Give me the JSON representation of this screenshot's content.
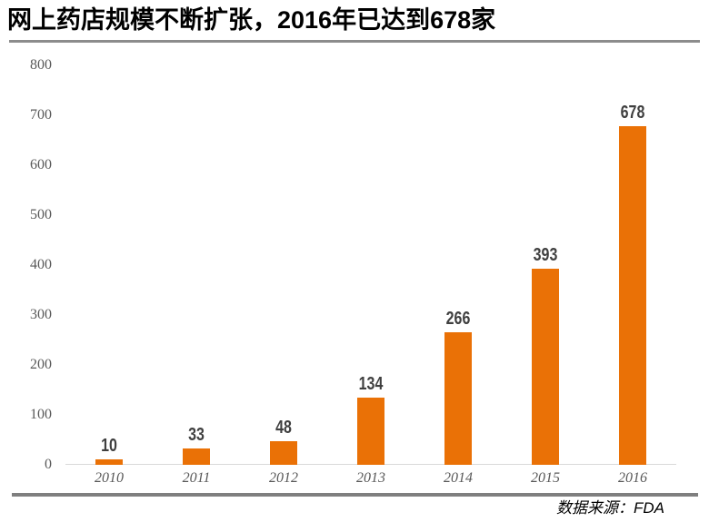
{
  "page": {
    "title": "网上药店规模不断扩张，2016年已达到678家",
    "source": "数据来源：FDA"
  },
  "colors": {
    "bar": "#ea7106",
    "value_label": "#3f3f3f",
    "axis_tick_label": "#595959",
    "axis_line": "#d9d9d9",
    "title_rule": "#8c8c8c",
    "footer_rule": "#7f7f7f",
    "title_text": "#000000"
  },
  "chart_data": {
    "type": "bar",
    "title": "网上药店规模不断扩张，2016年已达到678家",
    "categories": [
      "2010",
      "2011",
      "2012",
      "2013",
      "2014",
      "2015",
      "2016"
    ],
    "values": [
      10,
      33,
      48,
      134,
      266,
      393,
      678
    ],
    "data_labels": [
      "10",
      "33",
      "48",
      "134",
      "266",
      "393",
      "678"
    ],
    "xlabel": "",
    "ylabel": "",
    "ylim": [
      0,
      800
    ],
    "yticks": [
      0,
      100,
      200,
      300,
      400,
      500,
      600,
      700,
      800
    ],
    "grid": false,
    "legend": false,
    "source_note": "数据来源：FDA"
  }
}
